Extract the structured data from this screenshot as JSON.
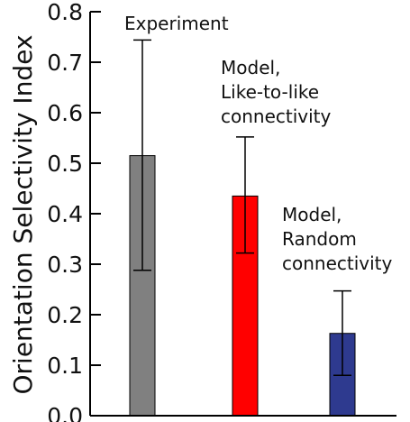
{
  "chart_data": {
    "type": "bar",
    "title": "",
    "xlabel": "",
    "ylabel": "Orientation Selectivity Index",
    "ylim": [
      0,
      0.8
    ],
    "yticks": [
      "0.0",
      "0.1",
      "0.2",
      "0.3",
      "0.4",
      "0.5",
      "0.6",
      "0.7",
      "0.8"
    ],
    "grid": false,
    "legend": "none",
    "categories": [
      "Experiment",
      "Model, Like-to-like connectivity",
      "Model, Random connectivity"
    ],
    "values": [
      0.515,
      0.435,
      0.163
    ],
    "error_low": [
      0.288,
      0.322,
      0.08
    ],
    "error_high": [
      0.744,
      0.552,
      0.247
    ],
    "colors": [
      "#808080",
      "#ff0000",
      "#2e3a8f"
    ],
    "annotations": [
      [
        "Experiment"
      ],
      [
        "Model,",
        "Like-to-like",
        "connectivity"
      ],
      [
        "Model,",
        "Random",
        "connectivity"
      ]
    ]
  }
}
